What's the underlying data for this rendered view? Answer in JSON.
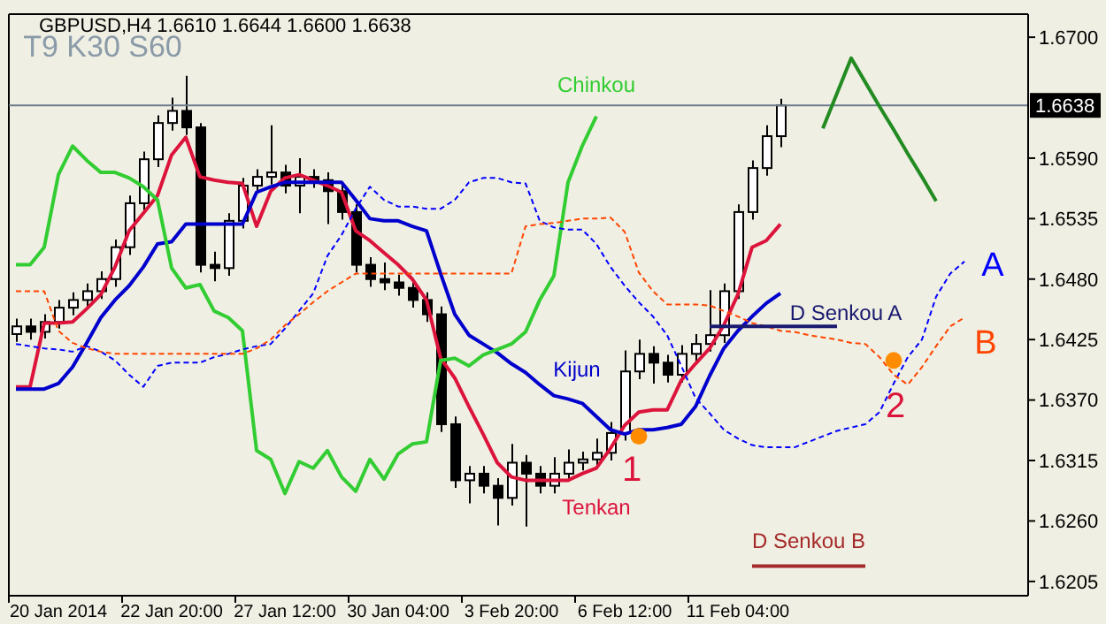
{
  "chart_data": {
    "type": "candlestick",
    "title": "GBPUSD,H4  1.6610 1.6644 1.6600 1.6638",
    "color": "#000000",
    "categories": [
      null,
      null,
      null,
      "20 Jan 2014",
      null,
      null,
      null,
      null,
      null,
      null,
      null,
      "22 Jan 20:00",
      null,
      null,
      null,
      null,
      null,
      null,
      null,
      "27 Jan 12:00",
      null,
      null,
      null,
      null,
      null,
      null,
      null,
      "30 Jan 04:00",
      null,
      null,
      null,
      null,
      null,
      null,
      null,
      "3 Feb 20:00",
      null,
      null,
      null,
      null,
      null,
      null,
      null,
      "6 Feb 12:00",
      null,
      null,
      null,
      null,
      null,
      null,
      null,
      "11 Feb 04:00",
      null,
      null,
      null,
      null,
      null,
      null,
      null,
      null,
      null,
      null,
      null,
      null,
      null,
      null,
      null,
      null,
      null,
      null,
      null,
      null
    ],
    "ohlc": [
      [
        1.643,
        1.6444,
        1.6423,
        1.6437
      ],
      [
        1.6437,
        1.6444,
        1.6425,
        1.6432
      ],
      [
        1.6432,
        1.6448,
        1.6426,
        1.6441
      ],
      [
        1.6441,
        1.6461,
        1.6435,
        1.6454
      ],
      [
        1.6454,
        1.6468,
        1.6447,
        1.6461
      ],
      [
        1.6461,
        1.6476,
        1.6455,
        1.6469
      ],
      [
        1.6469,
        1.6487,
        1.6462,
        1.648
      ],
      [
        1.648,
        1.6516,
        1.6473,
        1.6509
      ],
      [
        1.6509,
        1.6556,
        1.6502,
        1.6549
      ],
      [
        1.6549,
        1.6596,
        1.6542,
        1.6589
      ],
      [
        1.6589,
        1.6629,
        1.6582,
        1.6622
      ],
      [
        1.6622,
        1.6645,
        1.6615,
        1.6633
      ],
      [
        1.6633,
        1.6665,
        1.6611,
        1.6618
      ],
      [
        1.6618,
        1.6622,
        1.6486,
        1.6493
      ],
      [
        1.6493,
        1.6505,
        1.6478,
        1.649
      ],
      [
        1.649,
        1.654,
        1.6483,
        1.6533
      ],
      [
        1.6533,
        1.6572,
        1.6526,
        1.6565
      ],
      [
        1.6565,
        1.658,
        1.6558,
        1.6573
      ],
      [
        1.6573,
        1.662,
        1.6566,
        1.6577
      ],
      [
        1.6577,
        1.6584,
        1.6558,
        1.6565
      ],
      [
        1.6565,
        1.659,
        1.654,
        1.6573
      ],
      [
        1.6573,
        1.658,
        1.6563,
        1.657
      ],
      [
        1.657,
        1.6577,
        1.653,
        1.656
      ],
      [
        1.656,
        1.6567,
        1.6534,
        1.6541
      ],
      [
        1.6541,
        1.6548,
        1.6486,
        1.6493
      ],
      [
        1.6493,
        1.65,
        1.6473,
        1.648
      ],
      [
        1.648,
        1.6495,
        1.647,
        1.6477
      ],
      [
        1.6477,
        1.6484,
        1.6465,
        1.6472
      ],
      [
        1.6472,
        1.6479,
        1.6454,
        1.6461
      ],
      [
        1.6461,
        1.6468,
        1.6441,
        1.6448
      ],
      [
        1.6448,
        1.6455,
        1.6341,
        1.6348
      ],
      [
        1.6348,
        1.6355,
        1.629,
        1.6297
      ],
      [
        1.6297,
        1.631,
        1.6276,
        1.6303
      ],
      [
        1.6303,
        1.631,
        1.6285,
        1.6292
      ],
      [
        1.6292,
        1.6299,
        1.6256,
        1.6281
      ],
      [
        1.6281,
        1.633,
        1.6274,
        1.6313
      ],
      [
        1.6313,
        1.632,
        1.6255,
        1.6303
      ],
      [
        1.6303,
        1.631,
        1.6285,
        1.6292
      ],
      [
        1.6292,
        1.6318,
        1.6285,
        1.6303
      ],
      [
        1.6303,
        1.6325,
        1.6296,
        1.6313
      ],
      [
        1.6313,
        1.6323,
        1.6306,
        1.6316
      ],
      [
        1.6316,
        1.6335,
        1.6309,
        1.6322
      ],
      [
        1.6322,
        1.635,
        1.6315,
        1.634
      ],
      [
        1.634,
        1.6415,
        1.6333,
        1.6396
      ],
      [
        1.6396,
        1.6425,
        1.6389,
        1.6412
      ],
      [
        1.6412,
        1.6419,
        1.6385,
        1.6404
      ],
      [
        1.6404,
        1.6411,
        1.6386,
        1.6393
      ],
      [
        1.6393,
        1.642,
        1.6386,
        1.6412
      ],
      [
        1.6412,
        1.643,
        1.6405,
        1.6421
      ],
      [
        1.6421,
        1.647,
        1.6414,
        1.6429
      ],
      [
        1.6429,
        1.6476,
        1.6422,
        1.6469
      ],
      [
        1.6469,
        1.6548,
        1.6462,
        1.6541
      ],
      [
        1.6541,
        1.6588,
        1.6534,
        1.6581
      ],
      [
        1.6581,
        1.662,
        1.6574,
        1.661
      ],
      [
        1.661,
        1.6644,
        1.66,
        1.6638
      ],
      null,
      null,
      null,
      null,
      null,
      null,
      null,
      null,
      null,
      null,
      null,
      null,
      null,
      null,
      null,
      null,
      null
    ],
    "series": [
      {
        "name": "Tenkan",
        "type": "line",
        "color": "#dc143c",
        "values": [
          1.6382,
          1.6382,
          1.644,
          1.644,
          1.6441,
          1.6453,
          1.6466,
          1.6491,
          1.6524,
          1.654,
          1.6556,
          1.6593,
          1.6609,
          1.6573,
          1.657,
          1.6568,
          1.6567,
          1.6528,
          1.656,
          1.6572,
          1.6575,
          1.657,
          1.6565,
          1.6559,
          1.6524,
          1.6515,
          1.6504,
          1.6493,
          1.648,
          1.6461,
          1.6408,
          1.639,
          1.6364,
          1.6339,
          1.6313,
          1.63,
          1.6297,
          1.6297,
          1.6297,
          1.6297,
          1.6303,
          1.6308,
          1.6326,
          1.6347,
          1.6359,
          1.6361,
          1.6361,
          1.6388,
          1.6403,
          1.6417,
          1.6438,
          1.6466,
          1.6509,
          1.6515,
          1.653,
          null,
          null,
          null,
          null,
          null,
          null,
          null,
          null,
          null,
          null,
          null,
          null,
          null,
          null,
          null,
          null,
          null
        ]
      },
      {
        "name": "Kijun",
        "type": "line",
        "color": "#0000cd",
        "values": [
          1.638,
          1.638,
          1.638,
          1.6385,
          1.64,
          1.6422,
          1.6445,
          1.6461,
          1.6474,
          1.6491,
          1.6512,
          1.6514,
          1.653,
          1.653,
          1.653,
          1.653,
          1.653,
          1.6559,
          1.6564,
          1.6568,
          1.6568,
          1.6568,
          1.6568,
          1.6568,
          1.6552,
          1.6535,
          1.6533,
          1.6533,
          1.6528,
          1.6524,
          1.6485,
          1.6448,
          1.6429,
          1.6421,
          1.6413,
          1.6403,
          1.6395,
          1.6384,
          1.6374,
          1.6371,
          1.6367,
          1.6355,
          1.6343,
          1.6339,
          1.6343,
          1.6343,
          1.6345,
          1.6348,
          1.6364,
          1.6392,
          1.6417,
          1.6433,
          1.6446,
          1.6458,
          1.6467,
          null,
          null,
          null,
          null,
          null,
          null,
          null,
          null,
          null,
          null,
          null,
          null,
          null,
          null,
          null,
          null,
          null
        ]
      },
      {
        "name": "Chinkou",
        "type": "line",
        "color": "#32cd32",
        "values": [
          1.6493,
          1.6493,
          1.6509,
          1.6575,
          1.6601,
          1.6588,
          1.6577,
          1.6577,
          1.6572,
          1.6564,
          1.6552,
          1.649,
          1.6472,
          1.6475,
          1.6451,
          1.6445,
          1.6433,
          1.6324,
          1.6316,
          1.6285,
          1.6314,
          1.6308,
          1.6324,
          1.63,
          1.6287,
          1.6316,
          1.6298,
          1.6321,
          1.633,
          1.6332,
          1.6406,
          1.6408,
          1.6401,
          1.6411,
          1.6416,
          1.6421,
          1.6432,
          1.6461,
          1.6483,
          1.6568,
          1.6601,
          1.6628,
          null,
          null,
          null,
          null,
          null,
          null,
          null,
          null,
          null,
          null,
          null,
          null,
          null,
          null,
          null,
          null,
          null,
          null,
          null,
          null,
          null,
          null,
          null,
          null,
          null,
          null,
          null,
          null,
          null,
          null
        ]
      },
      {
        "name": "A",
        "type": "line",
        "color": "#0000ff",
        "line_style": "dashed",
        "values": [
          1.6421,
          1.6419,
          1.6417,
          1.6416,
          1.6414,
          1.6419,
          1.6414,
          1.6406,
          1.6393,
          1.6382,
          1.6401,
          1.6404,
          1.6404,
          1.6404,
          1.6409,
          1.6412,
          1.6416,
          1.6419,
          1.6421,
          1.6435,
          1.6451,
          1.6467,
          1.6501,
          1.652,
          1.6544,
          1.6564,
          1.6552,
          1.6546,
          1.6546,
          1.6544,
          1.6544,
          1.6552,
          1.6568,
          1.6572,
          1.6572,
          1.6568,
          1.6567,
          1.6533,
          1.6527,
          1.6525,
          1.6525,
          1.6512,
          1.6491,
          1.6474,
          1.6459,
          1.6446,
          1.6429,
          1.6401,
          1.6372,
          1.6358,
          1.6343,
          1.6335,
          1.6329,
          1.6327,
          1.6327,
          1.6327,
          1.6332,
          1.6337,
          1.6342,
          1.6345,
          1.6348,
          1.6359,
          1.6385,
          1.6409,
          1.6425,
          1.6464,
          1.6485,
          1.6496,
          null,
          null,
          null,
          null
        ]
      },
      {
        "name": "B",
        "type": "line",
        "color": "#ff4500",
        "line_style": "dashed",
        "values": [
          1.6469,
          1.6469,
          1.6469,
          1.6433,
          1.6422,
          1.6417,
          1.6414,
          1.6412,
          1.6412,
          1.6412,
          1.6412,
          1.6412,
          1.6412,
          1.6412,
          1.6412,
          1.6412,
          1.6412,
          1.6417,
          1.6425,
          1.6438,
          1.6448,
          1.6459,
          1.6469,
          1.6477,
          1.6485,
          1.6485,
          1.6485,
          1.6485,
          1.6485,
          1.6485,
          1.6485,
          1.6485,
          1.6485,
          1.6485,
          1.6485,
          1.6485,
          1.6528,
          1.653,
          1.6531,
          1.6533,
          1.6535,
          1.6535,
          1.6536,
          1.6523,
          1.6486,
          1.6469,
          1.6457,
          1.6457,
          1.6457,
          1.6456,
          1.6451,
          1.6446,
          1.644,
          1.6437,
          1.6433,
          1.6432,
          1.6429,
          1.6427,
          1.6425,
          1.6422,
          1.6421,
          1.6409,
          1.6393,
          1.6384,
          1.64,
          1.6419,
          1.6437,
          1.6445,
          null,
          null,
          null,
          null
        ]
      },
      {
        "name": "D Senkou A",
        "type": "line",
        "color": "#191970",
        "values": [
          null,
          null,
          null,
          null,
          null,
          null,
          null,
          null,
          null,
          null,
          null,
          null,
          null,
          null,
          null,
          null,
          null,
          null,
          null,
          null,
          null,
          null,
          null,
          null,
          null,
          null,
          null,
          null,
          null,
          null,
          null,
          null,
          null,
          null,
          null,
          null,
          null,
          null,
          null,
          null,
          null,
          null,
          null,
          null,
          null,
          null,
          null,
          null,
          null,
          1.6437,
          1.6437,
          1.6437,
          1.6437,
          1.6437,
          1.6437,
          1.6437,
          1.6437,
          1.6437,
          1.6437,
          null,
          null,
          null,
          null,
          null,
          null,
          null,
          null,
          null,
          null,
          null,
          null,
          null
        ]
      },
      {
        "name": "D Senkou B",
        "type": "line",
        "color": "#a52a2a",
        "values": [
          null,
          null,
          null,
          null,
          null,
          null,
          null,
          null,
          null,
          null,
          null,
          null,
          null,
          null,
          null,
          null,
          null,
          null,
          null,
          null,
          null,
          null,
          null,
          null,
          null,
          null,
          null,
          null,
          null,
          null,
          null,
          null,
          null,
          null,
          null,
          null,
          null,
          null,
          null,
          null,
          null,
          null,
          null,
          null,
          null,
          null,
          null,
          null,
          null,
          null,
          null,
          null,
          1.6219,
          1.6219,
          1.6219,
          1.6219,
          1.6219,
          1.6219,
          1.6219,
          1.6219,
          1.6219,
          null,
          null,
          null,
          null,
          null,
          null,
          null,
          null,
          null,
          null,
          null
        ]
      },
      {
        "type": "line",
        "color": "#228b22",
        "values": [
          null,
          null,
          null,
          null,
          null,
          null,
          null,
          null,
          null,
          null,
          null,
          null,
          null,
          null,
          null,
          null,
          null,
          null,
          null,
          null,
          null,
          null,
          null,
          null,
          null,
          null,
          null,
          null,
          null,
          null,
          null,
          null,
          null,
          null,
          null,
          null,
          null,
          null,
          null,
          null,
          null,
          null,
          null,
          null,
          null,
          null,
          null,
          null,
          null,
          null,
          null,
          null,
          null,
          null,
          null,
          null,
          null,
          1.6617,
          1.6649,
          1.6681,
          1.6659,
          1.6637,
          1.6616,
          1.6594,
          1.6573,
          1.6551,
          null,
          null,
          null,
          null,
          null,
          null
        ]
      },
      {
        "type": "scatter",
        "color": "#ff8c00",
        "marker": "circle",
        "values": [
          null,
          null,
          null,
          null,
          null,
          null,
          null,
          null,
          null,
          null,
          null,
          null,
          null,
          null,
          null,
          null,
          null,
          null,
          null,
          null,
          null,
          null,
          null,
          null,
          null,
          null,
          null,
          null,
          null,
          null,
          null,
          null,
          null,
          null,
          null,
          null,
          null,
          null,
          null,
          null,
          null,
          null,
          null,
          null,
          1.6337,
          null,
          null,
          null,
          null,
          null,
          null,
          null,
          null,
          null,
          null,
          null,
          null,
          null,
          null,
          null,
          null,
          null,
          1.6406,
          null,
          null,
          null,
          null,
          null,
          null,
          null,
          null,
          null
        ]
      }
    ],
    "annotations": [
      "T9 K30 S60",
      "1",
      "2"
    ],
    "ref_lines": [
      {
        "axis": "y",
        "value": 1.6638,
        "label": "1.6638",
        "color": "#6b7b8c"
      }
    ],
    "ylim": [
      1.6192,
      1.6721
    ],
    "yticks": [
      {
        "value": 1.6205,
        "label": "1.6205"
      },
      {
        "value": 1.626,
        "label": "1.6260"
      },
      {
        "value": 1.6315,
        "label": "1.6315"
      },
      {
        "value": 1.637,
        "label": "1.6370"
      },
      {
        "value": 1.6425,
        "label": "1.6425"
      },
      {
        "value": 1.648,
        "label": "1.6480"
      },
      {
        "value": 1.6535,
        "label": "1.6535"
      },
      {
        "value": 1.659,
        "label": "1.6590"
      },
      {
        "value": 1.67,
        "label": "1.6700"
      }
    ]
  }
}
